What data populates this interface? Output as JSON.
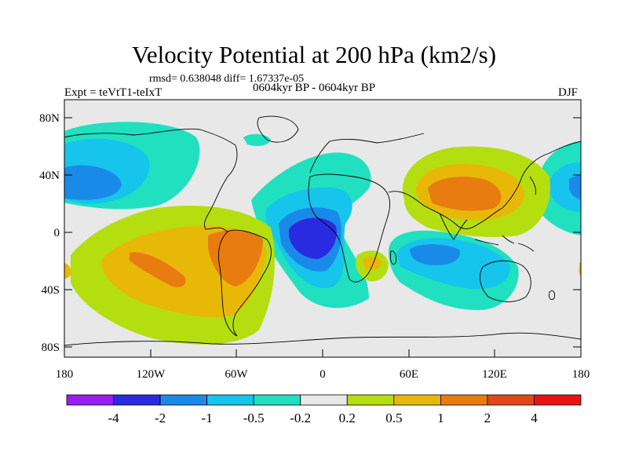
{
  "title": "Velocity Potential at 200 hPa (km2/s)",
  "stats": "rmsd= 0.638048 diff= 1.67337e-05",
  "experiment": "Expt = teVtT1-teIxT",
  "period": "0604kyr BP - 0604kyr BP",
  "season": "DJF",
  "map": {
    "lat_ticks": [
      "80N",
      "40N",
      "0",
      "40S",
      "80S"
    ],
    "lon_ticks": [
      "180",
      "120W",
      "60W",
      "0",
      "60E",
      "120E",
      "180"
    ]
  },
  "colorbar": {
    "colors": [
      "#9b1df0",
      "#2a2ae0",
      "#1a8ae8",
      "#16c4ec",
      "#20e0c0",
      "#e8e8e8",
      "#b4de10",
      "#e8b808",
      "#e87c10",
      "#e04818",
      "#e81414"
    ],
    "labels": [
      "-4",
      "-2",
      "-1",
      "-0.5",
      "-0.2",
      "0.2",
      "0.5",
      "1",
      "2",
      "4"
    ]
  }
}
